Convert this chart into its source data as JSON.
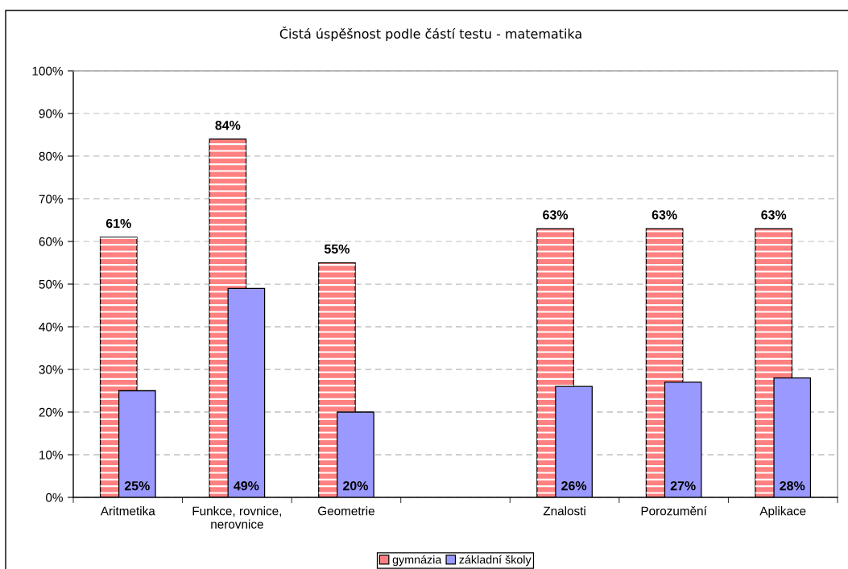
{
  "chart_data": {
    "type": "bar",
    "title": "Čistá úspěšnost podle částí testu - matematika",
    "categories": [
      "Aritmetika",
      "Funkce, rovnice, nerovnice",
      "Geometrie",
      null,
      "Znalosti",
      "Porozumění",
      "Aplikace"
    ],
    "series": [
      {
        "name": "gymnázia",
        "color": "#ff8080",
        "values": [
          61,
          84,
          55,
          null,
          63,
          63,
          63
        ],
        "value_labels": [
          "61%",
          "84%",
          "55%",
          null,
          "63%",
          "63%",
          "63%"
        ]
      },
      {
        "name": "základní školy",
        "color": "#9999ff",
        "values": [
          25,
          49,
          20,
          null,
          26,
          27,
          28
        ],
        "value_labels": [
          "25%",
          "49%",
          "20%",
          null,
          "26%",
          "27%",
          "28%"
        ]
      }
    ],
    "ylim": [
      0,
      100
    ],
    "yticks": [
      {
        "value": 0,
        "label": "0%"
      },
      {
        "value": 10,
        "label": "10%"
      },
      {
        "value": 20,
        "label": "20%"
      },
      {
        "value": 30,
        "label": "30%"
      },
      {
        "value": 40,
        "label": "40%"
      },
      {
        "value": 50,
        "label": "50%"
      },
      {
        "value": 60,
        "label": "60%"
      },
      {
        "value": 70,
        "label": "70%"
      },
      {
        "value": 80,
        "label": "80%"
      },
      {
        "value": 90,
        "label": "90%"
      },
      {
        "value": 100,
        "label": "100%"
      }
    ],
    "grid": "y",
    "legend": "bottom"
  }
}
